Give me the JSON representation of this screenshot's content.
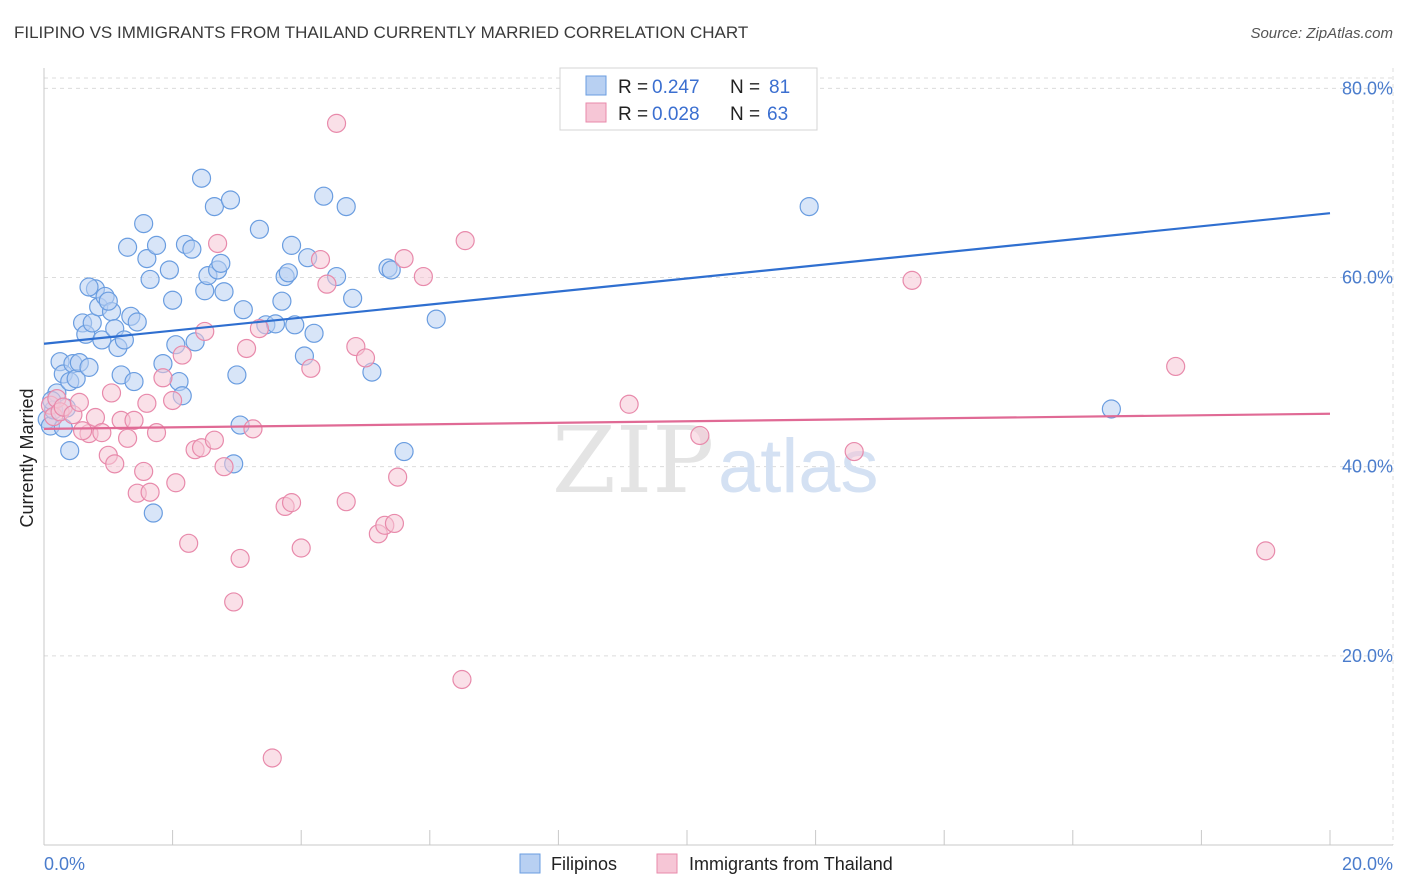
{
  "title": "FILIPINO VS IMMIGRANTS FROM THAILAND CURRENTLY MARRIED CORRELATION CHART",
  "source": "Source: ZipAtlas.com",
  "watermark": {
    "zip": "ZIP",
    "atlas": "atlas"
  },
  "legend_box": {
    "rows": [
      {
        "r_label": "R =",
        "r_value": "0.247",
        "n_label": "N =",
        "n_value": "81"
      },
      {
        "r_label": "R =",
        "r_value": "0.028",
        "n_label": "N =",
        "n_value": "63"
      }
    ]
  },
  "bottom_legend": {
    "series1": "Filipinos",
    "series2": "Immigrants from Thailand"
  },
  "chart_data": {
    "type": "scatter",
    "title": "FILIPINO VS IMMIGRANTS FROM THAILAND CURRENTLY MARRIED CORRELATION CHART",
    "xlabel": "",
    "ylabel": "Currently Married",
    "xlim": [
      0,
      20
    ],
    "ylim": [
      0,
      83
    ],
    "x_ticks": [
      {
        "value": 0,
        "label": "0.0%"
      },
      {
        "value": 20,
        "label": "20.0%"
      }
    ],
    "y_ticks": [
      {
        "value": 20,
        "label": "20.0%"
      },
      {
        "value": 40,
        "label": "40.0%"
      },
      {
        "value": 60,
        "label": "60.0%"
      },
      {
        "value": 80,
        "label": "80.0%"
      }
    ],
    "grid": true,
    "legend_position": "bottom",
    "series": [
      {
        "name": "Filipinos",
        "color": "#6a9de0",
        "fill": "#b8d0f2",
        "r": 0.247,
        "n": 81,
        "trend": {
          "x": [
            0,
            20
          ],
          "y": [
            53.0,
            66.8
          ]
        },
        "points": [
          [
            0.05,
            45.0
          ],
          [
            0.1,
            44.3
          ],
          [
            0.15,
            46.0
          ],
          [
            0.2,
            47.8
          ],
          [
            0.25,
            51.1
          ],
          [
            0.3,
            49.8
          ],
          [
            0.35,
            46.2
          ],
          [
            0.4,
            49.0
          ],
          [
            0.45,
            50.9
          ],
          [
            0.5,
            49.3
          ],
          [
            0.55,
            51.0
          ],
          [
            0.6,
            55.2
          ],
          [
            0.65,
            54.0
          ],
          [
            0.7,
            50.5
          ],
          [
            0.75,
            55.2
          ],
          [
            0.8,
            58.8
          ],
          [
            0.85,
            56.9
          ],
          [
            0.9,
            53.4
          ],
          [
            0.95,
            58.0
          ],
          [
            1.05,
            56.4
          ],
          [
            1.1,
            54.6
          ],
          [
            1.15,
            52.6
          ],
          [
            1.2,
            49.7
          ],
          [
            1.25,
            53.4
          ],
          [
            1.3,
            63.2
          ],
          [
            1.35,
            55.9
          ],
          [
            1.4,
            49.0
          ],
          [
            1.45,
            55.3
          ],
          [
            1.55,
            65.7
          ],
          [
            1.6,
            62.0
          ],
          [
            1.65,
            59.8
          ],
          [
            1.7,
            35.1
          ],
          [
            1.75,
            63.4
          ],
          [
            1.85,
            50.9
          ],
          [
            1.95,
            60.8
          ],
          [
            2.0,
            57.6
          ],
          [
            2.05,
            52.9
          ],
          [
            2.1,
            49.0
          ],
          [
            2.15,
            47.5
          ],
          [
            2.2,
            63.5
          ],
          [
            2.3,
            63.0
          ],
          [
            2.35,
            53.2
          ],
          [
            2.45,
            70.5
          ],
          [
            2.5,
            58.6
          ],
          [
            2.55,
            60.2
          ],
          [
            2.65,
            67.5
          ],
          [
            2.7,
            60.8
          ],
          [
            2.75,
            61.5
          ],
          [
            2.8,
            58.5
          ],
          [
            2.9,
            68.2
          ],
          [
            2.95,
            40.3
          ],
          [
            3.0,
            49.7
          ],
          [
            3.05,
            44.4
          ],
          [
            3.1,
            56.6
          ],
          [
            3.35,
            65.1
          ],
          [
            3.45,
            55.0
          ],
          [
            3.6,
            55.1
          ],
          [
            3.7,
            57.5
          ],
          [
            3.75,
            60.1
          ],
          [
            3.8,
            60.5
          ],
          [
            3.85,
            63.4
          ],
          [
            3.9,
            55.0
          ],
          [
            4.05,
            51.7
          ],
          [
            4.1,
            62.1
          ],
          [
            4.2,
            54.1
          ],
          [
            4.35,
            68.6
          ],
          [
            4.55,
            60.1
          ],
          [
            4.7,
            67.5
          ],
          [
            4.8,
            57.8
          ],
          [
            5.1,
            50.0
          ],
          [
            5.35,
            61.0
          ],
          [
            5.4,
            60.8
          ],
          [
            5.6,
            41.6
          ],
          [
            6.1,
            55.6
          ],
          [
            11.9,
            67.5
          ],
          [
            16.6,
            46.1
          ],
          [
            0.4,
            41.7
          ],
          [
            0.3,
            44.1
          ],
          [
            0.12,
            47.0
          ],
          [
            0.7,
            59.0
          ],
          [
            1.0,
            57.5
          ]
        ]
      },
      {
        "name": "Immigrants from Thailand",
        "color": "#e88aab",
        "fill": "#f6c6d6",
        "r": 0.028,
        "n": 63,
        "trend": {
          "x": [
            0,
            20
          ],
          "y": [
            44.0,
            45.6
          ]
        },
        "points": [
          [
            0.1,
            46.5
          ],
          [
            0.15,
            45.3
          ],
          [
            0.2,
            47.2
          ],
          [
            0.25,
            45.8
          ],
          [
            0.3,
            46.3
          ],
          [
            0.45,
            45.5
          ],
          [
            0.55,
            46.8
          ],
          [
            0.7,
            43.5
          ],
          [
            0.8,
            45.2
          ],
          [
            0.9,
            43.6
          ],
          [
            1.0,
            41.2
          ],
          [
            1.05,
            47.8
          ],
          [
            1.1,
            40.3
          ],
          [
            1.2,
            44.9
          ],
          [
            1.3,
            43.0
          ],
          [
            1.4,
            44.9
          ],
          [
            1.45,
            37.2
          ],
          [
            1.55,
            39.5
          ],
          [
            1.6,
            46.7
          ],
          [
            1.65,
            37.3
          ],
          [
            1.75,
            43.6
          ],
          [
            1.85,
            49.4
          ],
          [
            2.0,
            47.0
          ],
          [
            2.05,
            38.3
          ],
          [
            2.15,
            51.8
          ],
          [
            2.25,
            31.9
          ],
          [
            2.35,
            41.8
          ],
          [
            2.45,
            42.0
          ],
          [
            2.5,
            54.3
          ],
          [
            2.65,
            42.8
          ],
          [
            2.7,
            63.6
          ],
          [
            2.8,
            40.0
          ],
          [
            2.95,
            25.7
          ],
          [
            3.05,
            30.3
          ],
          [
            3.15,
            52.5
          ],
          [
            3.25,
            44.0
          ],
          [
            3.35,
            54.6
          ],
          [
            3.55,
            9.2
          ],
          [
            3.75,
            35.8
          ],
          [
            3.85,
            36.2
          ],
          [
            4.0,
            31.4
          ],
          [
            4.15,
            50.4
          ],
          [
            4.3,
            61.9
          ],
          [
            4.4,
            59.3
          ],
          [
            4.55,
            76.3
          ],
          [
            4.7,
            36.3
          ],
          [
            4.85,
            52.7
          ],
          [
            5.0,
            51.5
          ],
          [
            5.2,
            32.9
          ],
          [
            5.3,
            33.8
          ],
          [
            5.45,
            34.0
          ],
          [
            5.5,
            38.9
          ],
          [
            5.6,
            62.0
          ],
          [
            5.9,
            60.1
          ],
          [
            6.5,
            17.5
          ],
          [
            6.55,
            63.9
          ],
          [
            9.1,
            46.6
          ],
          [
            10.2,
            43.3
          ],
          [
            12.6,
            41.6
          ],
          [
            13.5,
            59.7
          ],
          [
            17.6,
            50.6
          ],
          [
            19.0,
            31.1
          ],
          [
            0.6,
            43.8
          ]
        ]
      }
    ]
  }
}
